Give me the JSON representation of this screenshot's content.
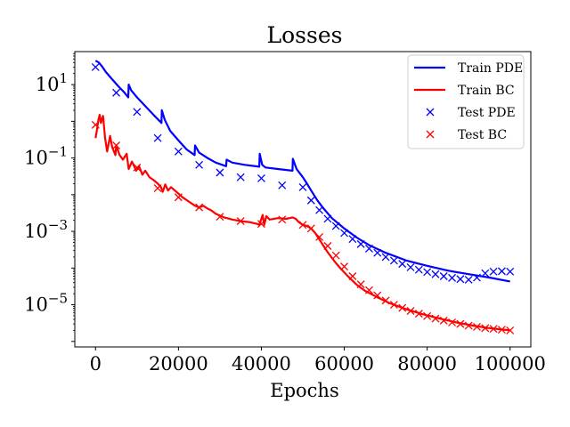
{
  "chart_data": {
    "type": "line",
    "title": "Losses",
    "xlabel": "Epochs",
    "ylabel": "",
    "xscale": "linear",
    "yscale": "log",
    "xlim": [
      -5000,
      105000
    ],
    "ylim_log10": [
      -6.15,
      1.9
    ],
    "x_ticks": [
      0,
      20000,
      40000,
      60000,
      80000,
      100000
    ],
    "x_tick_labels": [
      "0",
      "20000",
      "40000",
      "60000",
      "80000",
      "100000"
    ],
    "y_ticks_log10": [
      1,
      -1,
      -3,
      -5
    ],
    "y_tick_labels": [
      {
        "base": "10",
        "exp": "1"
      },
      {
        "base": "10",
        "exp": "−1"
      },
      {
        "base": "10",
        "exp": "−3"
      },
      {
        "base": "10",
        "exp": "−5"
      }
    ],
    "legend_position": "upper right",
    "series": [
      {
        "name": "Train PDE",
        "style": "line",
        "color": "#0000ff",
        "x": [
          0,
          800,
          1500,
          2500,
          4000,
          5500,
          7000,
          7900,
          8000,
          8600,
          10000,
          12000,
          14000,
          15900,
          16000,
          16700,
          18000,
          20000,
          22000,
          23900,
          24000,
          25000,
          27000,
          29000,
          31500,
          31600,
          33000,
          36000,
          39500,
          39600,
          40200,
          41000,
          44000,
          47500,
          47600,
          48500,
          50000,
          51000,
          52000,
          53500,
          55000,
          57000,
          60000,
          63000,
          66000,
          70000,
          75000,
          80000,
          85000,
          90000,
          95000,
          100000
        ],
        "y": [
          45,
          40,
          32,
          22,
          14,
          9,
          6,
          4.5,
          10,
          7,
          4.5,
          2.6,
          1.5,
          0.9,
          2,
          1.1,
          0.55,
          0.3,
          0.17,
          0.12,
          0.22,
          0.14,
          0.1,
          0.075,
          0.06,
          0.09,
          0.075,
          0.065,
          0.058,
          0.13,
          0.065,
          0.055,
          0.05,
          0.045,
          0.095,
          0.05,
          0.03,
          0.02,
          0.013,
          0.007,
          0.0042,
          0.0023,
          0.0012,
          0.00068,
          0.00042,
          0.00026,
          0.00016,
          0.000115,
          8.5e-05,
          6.8e-05,
          5.5e-05,
          4.3e-05
        ]
      },
      {
        "name": "Train BC",
        "style": "line",
        "color": "#ff0000",
        "x": [
          0,
          300,
          700,
          1000,
          1300,
          1800,
          2300,
          2800,
          3500,
          4000,
          4800,
          5000,
          5800,
          6600,
          7500,
          8000,
          8800,
          9800,
          10500,
          11300,
          12000,
          13000,
          14000,
          15000,
          15800,
          16200,
          16800,
          17500,
          18200,
          19500,
          21000,
          22500,
          24000,
          25000,
          26000,
          27000,
          28000,
          29000,
          31000,
          33000,
          35000,
          37000,
          39000,
          39500,
          40000,
          40300,
          40700,
          41200,
          42000,
          44000,
          46000,
          47500,
          48300,
          49000,
          50000,
          51000,
          52000,
          53000,
          54000,
          55000,
          56000,
          57500,
          59000,
          61000,
          63000,
          65000,
          68000,
          71000,
          75000,
          79000,
          83000,
          87000,
          91000,
          95000,
          100000
        ],
        "y": [
          0.35,
          0.55,
          1.1,
          1.5,
          0.9,
          1.4,
          0.35,
          0.15,
          0.4,
          0.2,
          0.12,
          0.22,
          0.12,
          0.09,
          0.13,
          0.05,
          0.08,
          0.045,
          0.06,
          0.035,
          0.045,
          0.03,
          0.025,
          0.02,
          0.016,
          0.012,
          0.019,
          0.013,
          0.016,
          0.012,
          0.0085,
          0.0065,
          0.005,
          0.0045,
          0.005,
          0.0042,
          0.0037,
          0.003,
          0.0024,
          0.0021,
          0.0019,
          0.0018,
          0.0016,
          0.0015,
          0.0022,
          0.0028,
          0.0015,
          0.0026,
          0.0021,
          0.0023,
          0.0022,
          0.0024,
          0.0022,
          0.0018,
          0.0015,
          0.0014,
          0.0012,
          0.0009,
          0.0006,
          0.0004,
          0.00027,
          0.00016,
          0.0001,
          5.8e-05,
          3.5e-05,
          2.4e-05,
          1.6e-05,
          1.1e-05,
          7.5e-06,
          5.5e-06,
          4.2e-06,
          3.3e-06,
          2.7e-06,
          2.3e-06,
          2e-06
        ]
      },
      {
        "name": "Test PDE",
        "style": "marker",
        "marker": "x",
        "color": "#0000ff",
        "x": [
          0,
          5000,
          10000,
          15000,
          20000,
          25000,
          30000,
          35000,
          40000,
          45000,
          50000,
          52000,
          54000,
          56000,
          58000,
          60000,
          62000,
          64000,
          66000,
          68000,
          70000,
          72000,
          74000,
          76000,
          78000,
          80000,
          82000,
          84000,
          86000,
          88000,
          90000,
          92000,
          94000,
          96000,
          98000,
          100000
        ],
        "y": [
          30,
          6,
          1.8,
          0.35,
          0.15,
          0.065,
          0.04,
          0.03,
          0.028,
          0.018,
          0.016,
          0.007,
          0.0038,
          0.0022,
          0.0014,
          0.0009,
          0.00062,
          0.00045,
          0.00034,
          0.00026,
          0.0002,
          0.00016,
          0.00013,
          0.000105,
          9e-05,
          7.8e-05,
          6.8e-05,
          6e-05,
          5.4e-05,
          5e-05,
          4.8e-05,
          5.5e-05,
          7.2e-05,
          8e-05,
          8.2e-05,
          8e-05
        ]
      },
      {
        "name": "Test BC",
        "style": "marker",
        "marker": "x",
        "color": "#ff0000",
        "x": [
          0,
          5000,
          10000,
          15000,
          20000,
          25000,
          30000,
          35000,
          40000,
          45000,
          50000,
          52000,
          54000,
          56000,
          58000,
          60000,
          62000,
          64000,
          66000,
          68000,
          70000,
          72000,
          74000,
          76000,
          78000,
          80000,
          82000,
          84000,
          86000,
          88000,
          90000,
          92000,
          94000,
          96000,
          98000,
          100000
        ],
        "y": [
          0.8,
          0.22,
          0.055,
          0.015,
          0.0085,
          0.0045,
          0.0025,
          0.0019,
          0.0016,
          0.0021,
          0.0015,
          0.0012,
          0.0007,
          0.0004,
          0.00022,
          0.00011,
          6e-05,
          3.6e-05,
          2.5e-05,
          1.8e-05,
          1.3e-05,
          1e-05,
          8.2e-06,
          6.8e-06,
          5.7e-06,
          4.9e-06,
          4.2e-06,
          3.7e-06,
          3.3e-06,
          3e-06,
          2.7e-06,
          2.5e-06,
          2.3e-06,
          2.2e-06,
          2.1e-06,
          2e-06
        ]
      }
    ]
  }
}
